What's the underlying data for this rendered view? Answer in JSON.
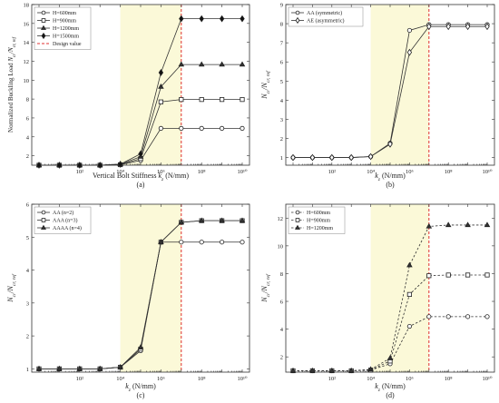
{
  "chart_data": [
    {
      "type": "line",
      "panel": "(a)",
      "xlabel": "Vertical Bolt Stiffness",
      "xlabel_var": "k",
      "xlabel_sub": "z",
      "xlabel_unit": " (N/mm)",
      "ylabel": "Normalized Buckling Load",
      "ylabel_var": "N",
      "ylabel_sub": "cr",
      "ylabel_den_sub": "cr, ref",
      "x_scale": "log",
      "xlim": [
        1,
        10000000000
      ],
      "ylim": [
        1,
        18
      ],
      "yticks": [
        2,
        4,
        6,
        8,
        10,
        12,
        14,
        16,
        18
      ],
      "xticks": [
        "10²",
        "10⁴",
        "10⁶",
        "10⁸",
        "10¹⁰"
      ],
      "shaded_x": [
        10000,
        10000000
      ],
      "design_value_x": 10000000,
      "legend_position": "top-left",
      "line_style": "solid",
      "series": [
        {
          "name": "H=600mm",
          "marker": "circle",
          "x": [
            1,
            10,
            100,
            1000,
            10000,
            100000,
            1000000,
            10000000,
            100000000,
            1000000000,
            10000000000
          ],
          "values": [
            1,
            1,
            1,
            1,
            1.05,
            1.5,
            4.9,
            4.9,
            4.9,
            4.9,
            4.9
          ]
        },
        {
          "name": "H=900mm",
          "marker": "square",
          "x": [
            1,
            10,
            100,
            1000,
            10000,
            100000,
            1000000,
            10000000,
            100000000,
            1000000000,
            10000000000
          ],
          "values": [
            1,
            1,
            1,
            1,
            1.05,
            1.7,
            7.7,
            7.95,
            7.95,
            7.95,
            7.95
          ]
        },
        {
          "name": "H=1200mm",
          "marker": "triangle",
          "x": [
            1,
            10,
            100,
            1000,
            10000,
            100000,
            1000000,
            10000000,
            100000000,
            1000000000,
            10000000000
          ],
          "values": [
            1,
            1,
            1,
            1,
            1.1,
            1.9,
            9.3,
            11.65,
            11.65,
            11.65,
            11.65
          ]
        },
        {
          "name": "H=1500mm",
          "marker": "diamond-filled",
          "x": [
            1,
            10,
            100,
            1000,
            10000,
            100000,
            1000000,
            10000000,
            100000000,
            1000000000,
            10000000000
          ],
          "values": [
            1,
            1,
            1,
            1,
            1.1,
            2.2,
            10.8,
            16.5,
            16.5,
            16.5,
            16.5
          ]
        }
      ],
      "design_legend": "Design value"
    },
    {
      "type": "line",
      "panel": "(b)",
      "xlabel": "",
      "xlabel_var": "k",
      "xlabel_sub": "z",
      "xlabel_unit": " (N/mm)",
      "ylabel": "",
      "ylabel_var": "N",
      "ylabel_sub": "cr",
      "ylabel_den_sub": "cr, ref",
      "x_scale": "log",
      "xlim": [
        1,
        10000000000
      ],
      "ylim": [
        0.6,
        9
      ],
      "yticks": [
        1,
        2,
        3,
        4,
        5,
        6,
        7,
        8,
        9
      ],
      "xticks": [
        "10²",
        "10⁴",
        "10⁶",
        "10⁸",
        "10¹⁰"
      ],
      "shaded_x": [
        10000,
        10000000
      ],
      "design_value_x": 10000000,
      "legend_position": "top-left",
      "line_style": "solid",
      "series": [
        {
          "name": "AA (symmetric)",
          "marker": "circle",
          "x": [
            1,
            10,
            100,
            1000,
            10000,
            100000,
            1000000,
            10000000,
            100000000,
            1000000000,
            10000000000
          ],
          "values": [
            1,
            1,
            1,
            1,
            1.05,
            1.75,
            7.65,
            7.95,
            7.95,
            7.95,
            7.95
          ]
        },
        {
          "name": "AE (asymmetric)",
          "marker": "diamond",
          "x": [
            1,
            10,
            100,
            1000,
            10000,
            100000,
            1000000,
            10000000,
            100000000,
            1000000000,
            10000000000
          ],
          "values": [
            1,
            1,
            1,
            1,
            1.05,
            1.7,
            6.5,
            7.85,
            7.85,
            7.85,
            7.85
          ]
        }
      ]
    },
    {
      "type": "line",
      "panel": "(c)",
      "xlabel": "",
      "xlabel_var": "k",
      "xlabel_sub": "z",
      "xlabel_unit": " (N/mm)",
      "ylabel": "",
      "ylabel_var": "N",
      "ylabel_sub": "cr",
      "ylabel_den_sub": "cr, ref",
      "x_scale": "log",
      "xlim": [
        1,
        10000000000
      ],
      "ylim": [
        0.9,
        6
      ],
      "yticks": [
        1,
        2,
        3,
        4,
        5,
        6
      ],
      "xticks": [
        "10²",
        "10⁴",
        "10⁶",
        "10⁸",
        "10¹⁰"
      ],
      "shaded_x": [
        10000,
        10000000
      ],
      "design_value_x": 10000000,
      "legend_position": "top-left",
      "line_style": "solid",
      "series": [
        {
          "name": "AA (n=2)",
          "marker": "circle",
          "x": [
            1,
            10,
            100,
            1000,
            10000,
            100000,
            1000000,
            10000000,
            100000000,
            1000000000,
            10000000000
          ],
          "values": [
            1,
            1,
            1,
            1,
            1.05,
            1.55,
            4.85,
            4.85,
            4.85,
            4.85,
            4.85
          ]
        },
        {
          "name": "AAA (n=3)",
          "marker": "square",
          "x": [
            1,
            10,
            100,
            1000,
            10000,
            100000,
            1000000,
            10000000,
            100000000,
            1000000000,
            10000000000
          ],
          "values": [
            1,
            1,
            1,
            1,
            1.05,
            1.6,
            4.85,
            5.45,
            5.5,
            5.5,
            5.5
          ]
        },
        {
          "name": "AAAA (n=4)",
          "marker": "triangle",
          "x": [
            1,
            10,
            100,
            1000,
            10000,
            100000,
            1000000,
            10000000,
            100000000,
            1000000000,
            10000000000
          ],
          "values": [
            1,
            1,
            1,
            1,
            1.05,
            1.65,
            4.85,
            5.45,
            5.5,
            5.5,
            5.5
          ]
        }
      ]
    },
    {
      "type": "line",
      "panel": "(d)",
      "xlabel": "",
      "xlabel_var": "k",
      "xlabel_sub": "z",
      "xlabel_unit": " (N/mm)",
      "ylabel": "",
      "ylabel_var": "N",
      "ylabel_sub": "cr",
      "ylabel_den_sub": "cr, ref",
      "x_scale": "log",
      "xlim": [
        1,
        10000000000
      ],
      "ylim": [
        0.9,
        13
      ],
      "yticks": [
        2,
        4,
        6,
        8,
        10,
        12
      ],
      "xticks": [
        "10²",
        "10⁴",
        "10⁶",
        "10⁸",
        "10¹⁰"
      ],
      "shaded_x": [
        10000,
        10000000
      ],
      "design_value_x": 10000000,
      "legend_position": "top-left",
      "line_style": "dashed",
      "series": [
        {
          "name": "H=600mm",
          "marker": "circle",
          "x": [
            1,
            10,
            100,
            1000,
            10000,
            100000,
            1000000,
            10000000,
            100000000,
            1000000000,
            10000000000
          ],
          "values": [
            1,
            1,
            1,
            1,
            1.05,
            1.5,
            4.2,
            4.9,
            4.9,
            4.9,
            4.9
          ]
        },
        {
          "name": "H=900mm",
          "marker": "square",
          "x": [
            1,
            10,
            100,
            1000,
            10000,
            100000,
            1000000,
            10000000,
            100000000,
            1000000000,
            10000000000
          ],
          "values": [
            1,
            1,
            1,
            1,
            1.05,
            1.7,
            6.5,
            7.85,
            7.9,
            7.9,
            7.9
          ]
        },
        {
          "name": "H=1200mm",
          "marker": "triangle",
          "x": [
            1,
            10,
            100,
            1000,
            10000,
            100000,
            1000000,
            10000000,
            100000000,
            1000000000,
            10000000000
          ],
          "values": [
            1,
            1,
            1,
            1,
            1.1,
            1.9,
            8.6,
            11.4,
            11.5,
            11.5,
            11.5
          ]
        }
      ]
    }
  ],
  "colors": {
    "shade": "#fbf9d8",
    "design_line": "#e03030",
    "series": "#333333"
  }
}
